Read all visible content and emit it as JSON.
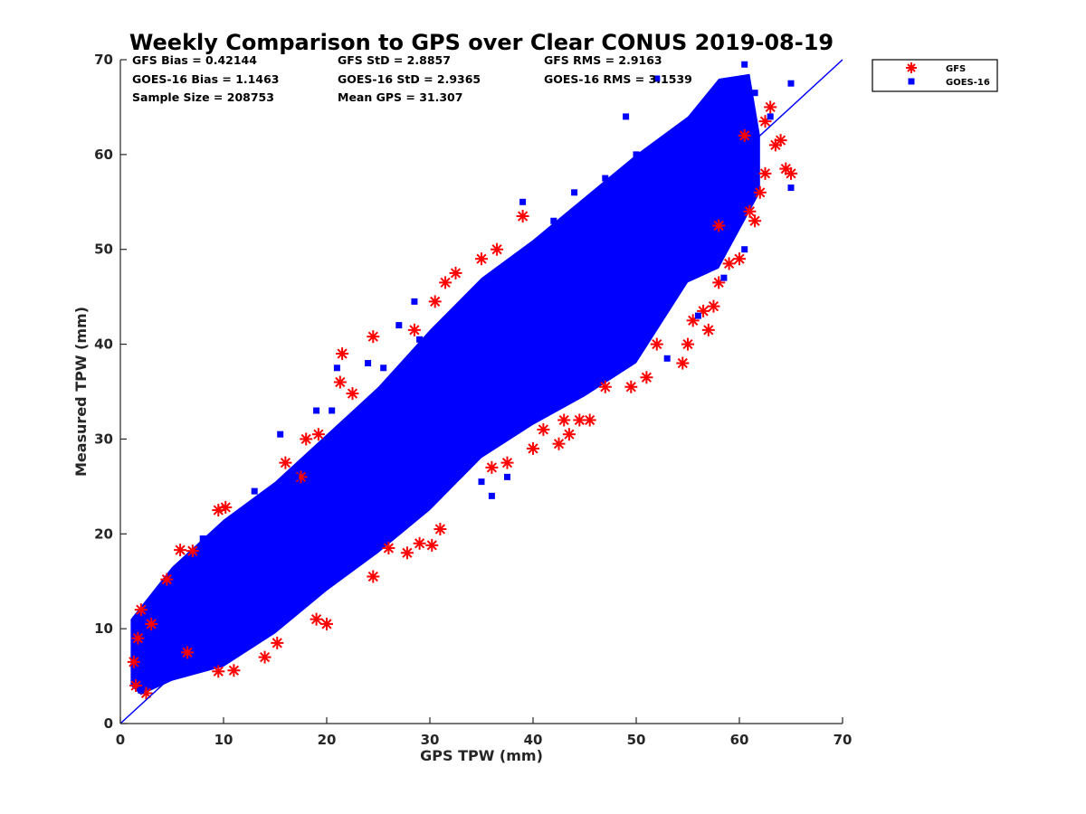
{
  "colors": {
    "gfs": "#ff0000",
    "goes16": "#0000ff",
    "axis": "#262626"
  },
  "stats": {
    "gfs_bias": "GFS Bias = 0.42144",
    "goes_bias": "GOES-16 Bias = 1.1463",
    "sample_size": "Sample Size = 208753",
    "gfs_std": "GFS StD = 2.8857",
    "goes_std": "GOES-16 StD = 2.9365",
    "mean_gps": "Mean GPS = 31.307",
    "gfs_rms": "GFS RMS = 2.9163",
    "goes_rms": "GOES-16 RMS = 3.1539"
  },
  "chart_data": {
    "type": "scatter",
    "title": "Weekly Comparison to GPS over Clear CONUS 2019-08-19",
    "xlabel": "GPS TPW (mm)",
    "ylabel": "Measured TPW (mm)",
    "xlim": [
      0,
      70
    ],
    "ylim": [
      0,
      70
    ],
    "x_ticks": [
      "0",
      "10",
      "20",
      "30",
      "40",
      "50",
      "60",
      "70"
    ],
    "y_ticks": [
      "0",
      "10",
      "20",
      "30",
      "40",
      "50",
      "60",
      "70"
    ],
    "grid": false,
    "legend_position": "outside-top-right",
    "reference_line": {
      "name": "1:1",
      "x": [
        0,
        70
      ],
      "y": [
        0,
        70
      ]
    },
    "series": [
      {
        "name": "GFS",
        "marker": "asterisk",
        "color": "#ff0000",
        "points": [
          [
            1.5,
            4.0
          ],
          [
            1.3,
            6.5
          ],
          [
            1.7,
            9.0
          ],
          [
            2.0,
            12.0
          ],
          [
            2.5,
            3.2
          ],
          [
            3.0,
            10.5
          ],
          [
            4.5,
            15.2
          ],
          [
            5.8,
            18.3
          ],
          [
            6.5,
            7.5
          ],
          [
            7.0,
            18.2
          ],
          [
            9.5,
            22.5
          ],
          [
            10.2,
            22.8
          ],
          [
            9.5,
            5.5
          ],
          [
            11.0,
            5.6
          ],
          [
            14.0,
            7.0
          ],
          [
            15.2,
            8.5
          ],
          [
            16.0,
            27.5
          ],
          [
            17.5,
            26.0
          ],
          [
            18.0,
            30.0
          ],
          [
            19.2,
            30.5
          ],
          [
            19.0,
            11.0
          ],
          [
            20.0,
            10.5
          ],
          [
            21.5,
            39.0
          ],
          [
            21.3,
            36.0
          ],
          [
            22.5,
            34.8
          ],
          [
            24.5,
            40.8
          ],
          [
            24.5,
            15.5
          ],
          [
            26.0,
            18.5
          ],
          [
            27.8,
            18.0
          ],
          [
            29.0,
            19.0
          ],
          [
            30.2,
            18.8
          ],
          [
            31.0,
            20.5
          ],
          [
            28.5,
            41.5
          ],
          [
            30.5,
            44.5
          ],
          [
            31.5,
            46.5
          ],
          [
            32.5,
            47.5
          ],
          [
            35.0,
            49.0
          ],
          [
            36.5,
            50.0
          ],
          [
            36.0,
            27.0
          ],
          [
            37.5,
            27.5
          ],
          [
            39.0,
            53.5
          ],
          [
            40.0,
            29.0
          ],
          [
            41.0,
            31.0
          ],
          [
            42.5,
            29.5
          ],
          [
            43.0,
            32.0
          ],
          [
            43.5,
            30.5
          ],
          [
            44.5,
            32.0
          ],
          [
            45.5,
            32.0
          ],
          [
            47.0,
            35.5
          ],
          [
            49.5,
            35.5
          ],
          [
            51.0,
            36.5
          ],
          [
            52.0,
            40.0
          ],
          [
            54.5,
            38.0
          ],
          [
            55.0,
            40.0
          ],
          [
            55.5,
            42.5
          ],
          [
            56.5,
            43.5
          ],
          [
            57.0,
            41.5
          ],
          [
            57.5,
            44.0
          ],
          [
            58.0,
            46.5
          ],
          [
            59.0,
            48.5
          ],
          [
            60.0,
            49.0
          ],
          [
            58.0,
            52.5
          ],
          [
            61.5,
            53.0
          ],
          [
            61.0,
            54.0
          ],
          [
            62.0,
            56.0
          ],
          [
            62.5,
            58.0
          ],
          [
            63.5,
            61.0
          ],
          [
            64.0,
            61.5
          ],
          [
            64.5,
            58.5
          ],
          [
            65.0,
            58.0
          ],
          [
            62.5,
            63.5
          ],
          [
            63.0,
            65.0
          ],
          [
            60.5,
            62.0
          ]
        ]
      },
      {
        "name": "GOES-16",
        "marker": "square",
        "color": "#0000ff",
        "points": [
          [
            1.5,
            11.0
          ],
          [
            2.0,
            3.5
          ],
          [
            8.0,
            19.5
          ],
          [
            15.5,
            30.5
          ],
          [
            17.0,
            26.0
          ],
          [
            19.0,
            33.0
          ],
          [
            21.0,
            37.5
          ],
          [
            22.0,
            31.0
          ],
          [
            24.0,
            38.0
          ],
          [
            25.5,
            37.5
          ],
          [
            27.0,
            42.0
          ],
          [
            28.5,
            44.5
          ],
          [
            29.0,
            40.5
          ],
          [
            25.0,
            26.0
          ],
          [
            35.0,
            25.5
          ],
          [
            36.0,
            24.0
          ],
          [
            37.5,
            26.0
          ],
          [
            40.0,
            50.0
          ],
          [
            42.0,
            53.0
          ],
          [
            44.0,
            56.0
          ],
          [
            46.5,
            55.0
          ],
          [
            49.0,
            64.0
          ],
          [
            50.0,
            60.0
          ],
          [
            53.0,
            38.5
          ],
          [
            56.0,
            43.0
          ],
          [
            57.0,
            50.5
          ],
          [
            58.5,
            47.0
          ],
          [
            60.5,
            50.0
          ],
          [
            60.5,
            69.5
          ],
          [
            63.0,
            64.0
          ],
          [
            65.0,
            67.5
          ],
          [
            65.0,
            56.5
          ],
          [
            58.0,
            66.0
          ],
          [
            54.5,
            63.0
          ],
          [
            52.0,
            68.0
          ],
          [
            47.0,
            57.5
          ],
          [
            39.0,
            55.0
          ],
          [
            20.5,
            33.0
          ],
          [
            13.0,
            24.5
          ],
          [
            6.5,
            15.0
          ],
          [
            3.0,
            8.0
          ],
          [
            11.5,
            14.0
          ],
          [
            17.5,
            14.5
          ],
          [
            23.0,
            22.0
          ],
          [
            30.0,
            29.5
          ],
          [
            34.0,
            40.0
          ],
          [
            38.0,
            34.5
          ],
          [
            42.0,
            43.0
          ],
          [
            45.5,
            48.5
          ],
          [
            50.5,
            49.0
          ],
          [
            55.5,
            56.5
          ],
          [
            59.0,
            58.0
          ],
          [
            61.5,
            66.5
          ],
          [
            9.0,
            9.5
          ],
          [
            14.5,
            18.0
          ],
          [
            26.5,
            26.5
          ]
        ]
      }
    ],
    "dense_band": {
      "upper": [
        [
          1.0,
          11.0
        ],
        [
          5.0,
          16.5
        ],
        [
          10.0,
          21.5
        ],
        [
          15.0,
          25.5
        ],
        [
          20.0,
          30.5
        ],
        [
          25.0,
          35.5
        ],
        [
          30.0,
          41.5
        ],
        [
          35.0,
          47.0
        ],
        [
          40.0,
          51.0
        ],
        [
          45.0,
          55.5
        ],
        [
          50.0,
          60.0
        ],
        [
          55.0,
          64.0
        ],
        [
          58.0,
          68.0
        ],
        [
          61.0,
          68.5
        ],
        [
          62.0,
          62.0
        ]
      ],
      "lower": [
        [
          62.0,
          56.0
        ],
        [
          60.0,
          52.0
        ],
        [
          58.0,
          48.0
        ],
        [
          55.0,
          46.5
        ],
        [
          50.0,
          38.0
        ],
        [
          45.0,
          34.5
        ],
        [
          40.0,
          31.5
        ],
        [
          35.0,
          28.0
        ],
        [
          30.0,
          22.5
        ],
        [
          25.0,
          18.0
        ],
        [
          20.0,
          14.0
        ],
        [
          15.0,
          9.5
        ],
        [
          10.0,
          6.0
        ],
        [
          5.0,
          4.5
        ],
        [
          2.0,
          3.0
        ],
        [
          1.0,
          4.0
        ]
      ]
    }
  }
}
